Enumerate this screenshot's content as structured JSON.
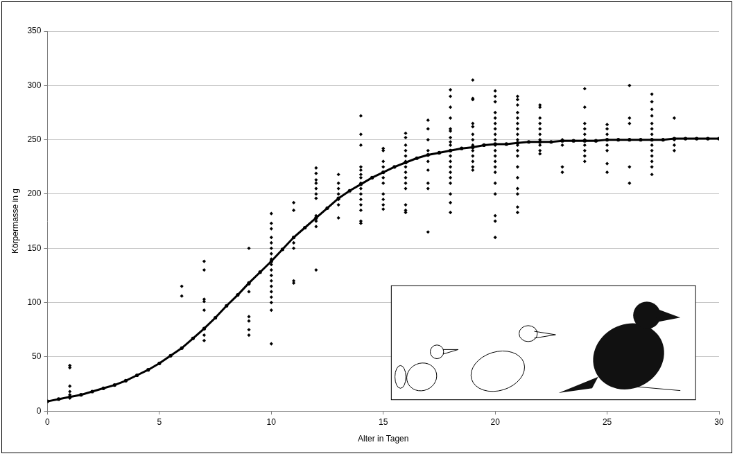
{
  "chart_data": {
    "type": "scatter",
    "x_label": "Alter in Tagen",
    "y_label": "Körpermasse in g",
    "xlim": [
      0,
      30
    ],
    "xticks": [
      0,
      5,
      10,
      15,
      20,
      25,
      30
    ],
    "ylim": [
      0,
      350
    ],
    "yticks": [
      0,
      50,
      100,
      150,
      200,
      250,
      300,
      350
    ],
    "grid": "y",
    "series": [
      {
        "type": "scatter",
        "marker": "diamond",
        "color": "#000000",
        "x": [
          1,
          1,
          1,
          1,
          1,
          1,
          6,
          6,
          7,
          7,
          7,
          7,
          7,
          7,
          7,
          7,
          9,
          9,
          9,
          9,
          9,
          9,
          9,
          10,
          10,
          10,
          10,
          10,
          10,
          10,
          10,
          10,
          10,
          10,
          10,
          10,
          10,
          10,
          10,
          10,
          10,
          11,
          11,
          11,
          11,
          11,
          11,
          11,
          12,
          12,
          12,
          12,
          12,
          12,
          12,
          12,
          12,
          12,
          12,
          13,
          13,
          13,
          13,
          13,
          13,
          13,
          14,
          14,
          14,
          14,
          14,
          14,
          14,
          14,
          14,
          14,
          14,
          14,
          14,
          14,
          14,
          15,
          15,
          15,
          15,
          15,
          15,
          15,
          15,
          15,
          15,
          15,
          16,
          16,
          16,
          16,
          16,
          16,
          16,
          16,
          16,
          16,
          16,
          16,
          16,
          16,
          17,
          17,
          17,
          17,
          17,
          17,
          17,
          17,
          17,
          18,
          18,
          18,
          18,
          18,
          18,
          18,
          18,
          18,
          18,
          18,
          18,
          18,
          18,
          18,
          18,
          18,
          18,
          18,
          19,
          19,
          19,
          19,
          19,
          19,
          19,
          19,
          19,
          19,
          19,
          19,
          19,
          20,
          20,
          20,
          20,
          20,
          20,
          20,
          20,
          20,
          20,
          20,
          20,
          20,
          20,
          20,
          20,
          20,
          20,
          20,
          20,
          21,
          21,
          21,
          21,
          21,
          21,
          21,
          21,
          21,
          21,
          21,
          21,
          21,
          21,
          21,
          21,
          21,
          21,
          22,
          22,
          22,
          22,
          22,
          22,
          22,
          22,
          22,
          22,
          23,
          23,
          23,
          23,
          24,
          24,
          24,
          24,
          24,
          24,
          24,
          24,
          24,
          24,
          25,
          25,
          25,
          25,
          25,
          25,
          25,
          25,
          26,
          26,
          26,
          26,
          26,
          26,
          27,
          27,
          27,
          27,
          27,
          27,
          27,
          27,
          27,
          27,
          27,
          27,
          27,
          27,
          28,
          28,
          28,
          28
        ],
        "values": [
          42,
          40,
          23,
          18,
          15,
          12,
          115,
          106,
          138,
          130,
          103,
          101,
          93,
          76,
          70,
          65,
          150,
          117,
          110,
          87,
          83,
          75,
          70,
          182,
          173,
          168,
          160,
          155,
          150,
          145,
          140,
          135,
          130,
          125,
          120,
          115,
          110,
          105,
          100,
          93,
          62,
          192,
          185,
          160,
          155,
          150,
          120,
          118,
          224,
          219,
          213,
          210,
          205,
          200,
          196,
          180,
          175,
          170,
          130,
          218,
          210,
          205,
          200,
          195,
          190,
          178,
          272,
          255,
          245,
          225,
          222,
          218,
          215,
          210,
          205,
          200,
          195,
          190,
          185,
          175,
          173,
          242,
          240,
          230,
          225,
          220,
          215,
          210,
          200,
          195,
          190,
          186,
          256,
          252,
          245,
          240,
          235,
          230,
          225,
          220,
          215,
          210,
          205,
          190,
          185,
          183,
          268,
          260,
          250,
          240,
          230,
          222,
          210,
          205,
          165,
          296,
          290,
          280,
          270,
          260,
          258,
          252,
          248,
          245,
          240,
          235,
          230,
          225,
          220,
          215,
          210,
          200,
          192,
          183,
          305,
          288,
          287,
          265,
          262,
          255,
          250,
          245,
          240,
          235,
          230,
          225,
          222,
          295,
          290,
          285,
          275,
          270,
          265,
          260,
          255,
          250,
          245,
          240,
          235,
          230,
          225,
          220,
          210,
          200,
          180,
          175,
          160,
          290,
          287,
          282,
          275,
          270,
          265,
          260,
          255,
          250,
          245,
          240,
          235,
          225,
          215,
          205,
          200,
          188,
          183,
          282,
          280,
          270,
          265,
          260,
          255,
          250,
          245,
          240,
          237,
          250,
          245,
          225,
          220,
          297,
          280,
          265,
          260,
          255,
          250,
          245,
          240,
          235,
          230,
          264,
          260,
          255,
          250,
          245,
          240,
          228,
          220,
          300,
          270,
          265,
          250,
          225,
          210,
          292,
          285,
          278,
          272,
          265,
          260,
          255,
          250,
          245,
          240,
          235,
          230,
          225,
          218,
          270,
          250,
          245,
          240
        ]
      },
      {
        "type": "line",
        "marker": "circle",
        "line_style": "solid",
        "color": "#000000",
        "x": [
          0,
          0.5,
          1,
          1.5,
          2,
          2.5,
          3,
          3.5,
          4,
          4.5,
          5,
          5.5,
          6,
          6.5,
          7,
          7.5,
          8,
          8.5,
          9,
          9.5,
          10,
          10.5,
          11,
          11.5,
          12,
          12.5,
          13,
          13.5,
          14,
          14.5,
          15,
          15.5,
          16,
          16.5,
          17,
          17.5,
          18,
          18.5,
          19,
          19.5,
          20,
          20.5,
          21,
          21.5,
          22,
          22.5,
          23,
          23.5,
          24,
          24.5,
          25,
          25.5,
          26,
          26.5,
          27,
          27.5,
          28,
          28.5,
          29,
          29.5,
          30
        ],
        "values": [
          9,
          11,
          13,
          15,
          18,
          21,
          24,
          28,
          33,
          38,
          44,
          51,
          58,
          67,
          76,
          86,
          97,
          107,
          118,
          128,
          138,
          149,
          160,
          169,
          178,
          187,
          196,
          203,
          209,
          215,
          220,
          225,
          229,
          233,
          236,
          238,
          240,
          242,
          243,
          245,
          246,
          246,
          247,
          248,
          248,
          248,
          249,
          249,
          249,
          249,
          250,
          250,
          250,
          250,
          250,
          250,
          251,
          251,
          251,
          251,
          251
        ]
      }
    ]
  }
}
